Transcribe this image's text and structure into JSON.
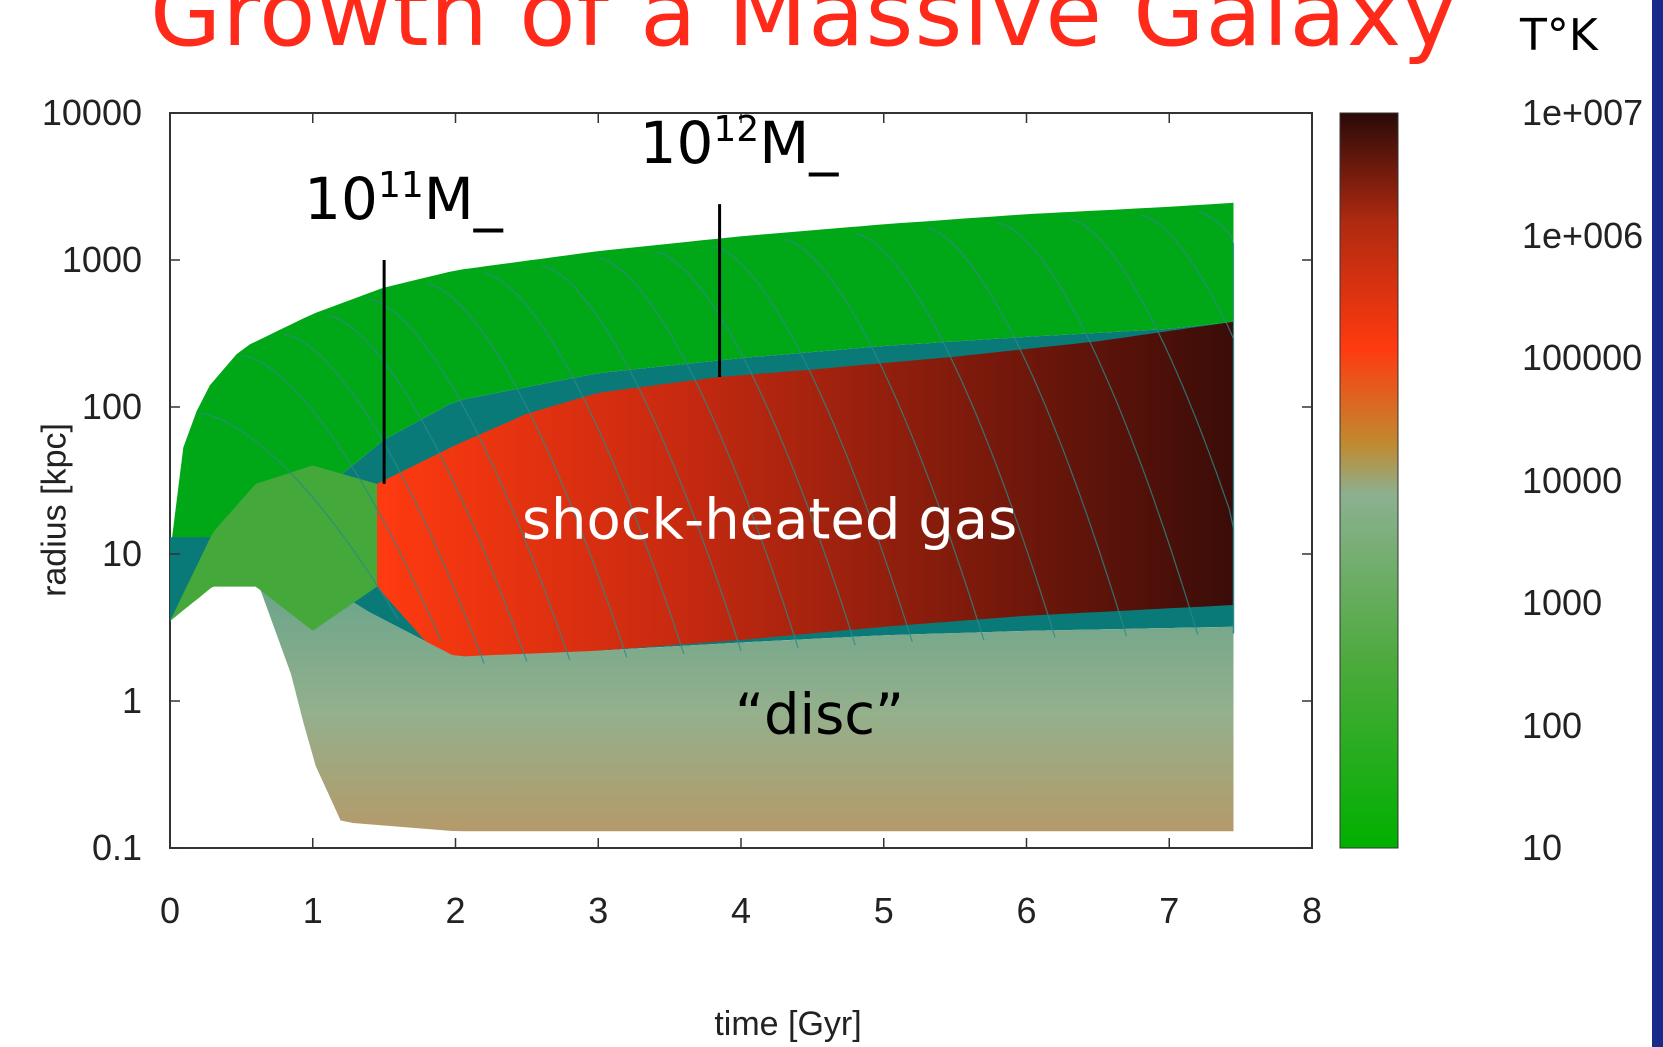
{
  "title": "Growth of a Massive Galaxy",
  "colorbar_unit": "T°K",
  "chart_data": {
    "type": "heatmap",
    "xlabel": "time [Gyr]",
    "ylabel": "radius [kpc]",
    "xlim": [
      0,
      8
    ],
    "ylim": [
      0.1,
      10000
    ],
    "yscale": "log",
    "x_ticks": [
      "0",
      "1",
      "2",
      "3",
      "4",
      "5",
      "6",
      "7",
      "8"
    ],
    "y_ticks": [
      "10000",
      "1000",
      "100",
      "10",
      "1",
      "0.1"
    ],
    "colorbar": {
      "label": "T°K",
      "scale": "log",
      "range": [
        10,
        10000000
      ],
      "ticks": [
        "1e+007",
        "1e+006",
        "100000",
        "10000",
        "1000",
        "100",
        "10"
      ],
      "colors": [
        "#00b000",
        "#4caa3c",
        "#8cb090",
        "#c08a30",
        "#ff3a10",
        "#b02a10",
        "#2a0a08"
      ]
    },
    "annotations": [
      {
        "base": "10",
        "exp": "11",
        "unit": "M_",
        "x": 1.5,
        "y_from": 30,
        "y_to": 1000
      },
      {
        "base": "10",
        "exp": "12",
        "unit": "M_",
        "x": 3.85,
        "y_from": 160,
        "y_to": 2400
      }
    ],
    "regions": [
      {
        "label": "shock-heated gas",
        "x": 4.2,
        "y": 17
      },
      {
        "label": "“disc”",
        "x": 4.55,
        "y": 0.8
      }
    ],
    "boundaries": {
      "virial_radius": [
        [
          0,
          10
        ],
        [
          0.1,
          60
        ],
        [
          0.25,
          130
        ],
        [
          0.5,
          250
        ],
        [
          1,
          430
        ],
        [
          1.5,
          650
        ],
        [
          2,
          850
        ],
        [
          3,
          1150
        ],
        [
          4,
          1450
        ],
        [
          5,
          1750
        ],
        [
          6,
          2050
        ],
        [
          7,
          2300
        ],
        [
          7.45,
          2450
        ]
      ],
      "halo_inner": [
        [
          0,
          3.5
        ],
        [
          0.5,
          9
        ],
        [
          1,
          24
        ],
        [
          1.5,
          60
        ],
        [
          2,
          110
        ],
        [
          3,
          170
        ],
        [
          4,
          215
        ],
        [
          5,
          260
        ],
        [
          6,
          300
        ],
        [
          7,
          340
        ],
        [
          7.45,
          380
        ]
      ],
      "shock_front": [
        [
          1.45,
          30
        ],
        [
          2,
          55
        ],
        [
          2.5,
          90
        ],
        [
          3,
          125
        ],
        [
          3.5,
          145
        ],
        [
          3.85,
          160
        ],
        [
          4.5,
          180
        ],
        [
          5.5,
          220
        ],
        [
          6.5,
          280
        ],
        [
          7.45,
          380
        ]
      ],
      "disc_top": [
        [
          0.5,
          13
        ],
        [
          0.9,
          8
        ],
        [
          1.4,
          4
        ],
        [
          2,
          2
        ],
        [
          3,
          2.2
        ],
        [
          4,
          2.5
        ],
        [
          5,
          2.8
        ],
        [
          6,
          3
        ],
        [
          7.45,
          3.2
        ]
      ],
      "disc_bottom": [
        [
          0.5,
          13
        ],
        [
          0.85,
          1.5
        ],
        [
          1,
          0.4
        ],
        [
          1.2,
          0.15
        ],
        [
          2,
          0.13
        ],
        [
          4,
          0.13
        ],
        [
          6,
          0.13
        ],
        [
          7.45,
          0.13
        ]
      ],
      "hot_bottom": [
        [
          1.45,
          6
        ],
        [
          2,
          1.5
        ],
        [
          3,
          2.2
        ],
        [
          4,
          2.6
        ],
        [
          5,
          3.2
        ],
        [
          6,
          3.8
        ],
        [
          7.45,
          4.5
        ]
      ]
    }
  }
}
